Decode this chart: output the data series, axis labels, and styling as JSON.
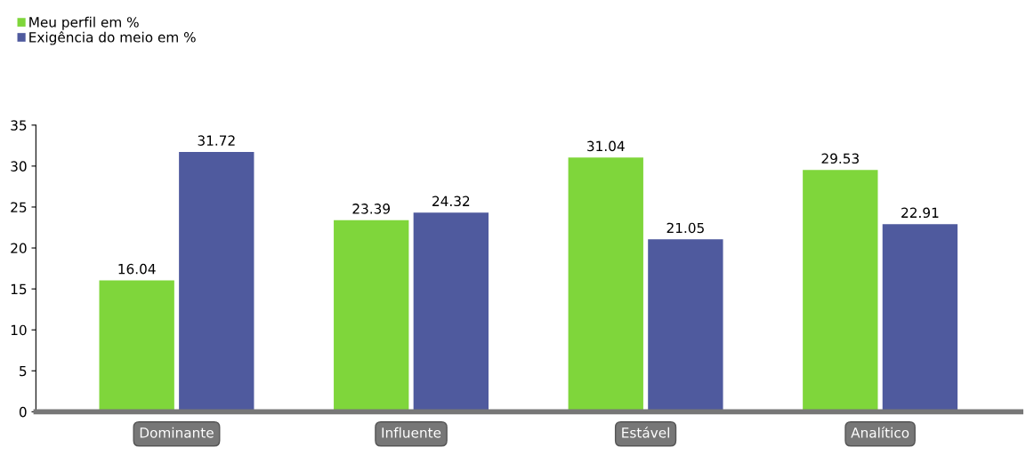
{
  "chart_data": {
    "type": "bar",
    "categories": [
      "Dominante",
      "Influente",
      "Estável",
      "Analítico"
    ],
    "series": [
      {
        "name": "Meu perfil em %",
        "color": "#7fd63b",
        "values": [
          16.04,
          23.39,
          31.04,
          29.53
        ]
      },
      {
        "name": "Exigência do meio em %",
        "color": "#4f5a9e",
        "values": [
          31.72,
          24.32,
          21.05,
          22.91
        ]
      }
    ],
    "ylim": [
      0,
      35
    ],
    "yticks": [
      0,
      5,
      10,
      15,
      20,
      25,
      30,
      35
    ],
    "grid": false,
    "legend": "top left",
    "data_labels": true
  }
}
